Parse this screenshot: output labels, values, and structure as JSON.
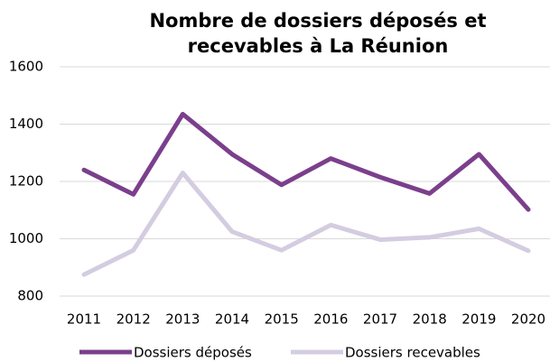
{
  "chart_data": {
    "type": "line",
    "title": [
      "Nombre de dossiers déposés et",
      "recevables à La Réunion"
    ],
    "categories": [
      "2011",
      "2012",
      "2013",
      "2014",
      "2015",
      "2016",
      "2017",
      "2018",
      "2019",
      "2020"
    ],
    "series": [
      {
        "name": "Dossiers déposés",
        "color": "#7b3f8c",
        "values": [
          1240,
          1155,
          1435,
          1295,
          1188,
          1280,
          1215,
          1158,
          1295,
          1102
        ]
      },
      {
        "name": "Dossiers recevables",
        "color": "#d4cce0",
        "values": [
          875,
          960,
          1230,
          1025,
          960,
          1048,
          997,
          1005,
          1035,
          958
        ]
      }
    ],
    "ylim": [
      800,
      1600
    ],
    "yticks": [
      800,
      1000,
      1200,
      1400,
      1600
    ],
    "grid": true,
    "legend": "bottom"
  }
}
